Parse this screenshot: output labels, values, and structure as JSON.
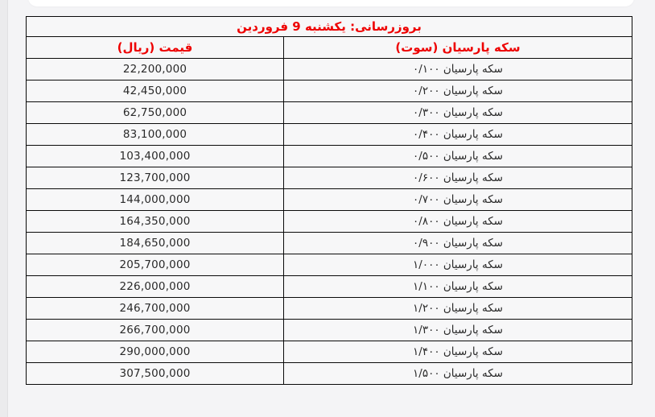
{
  "colors": {
    "accent_red": "#ee0000"
  },
  "table": {
    "title": "بروزرسانی: یکشنبه 9 فروردین",
    "columns": {
      "coin": "سکه پارسیان (سوت)",
      "price": "قیمت (ریال)"
    },
    "rows": [
      {
        "price": "22,200,000",
        "coin": "سکه پارسیان ۰/۱۰۰"
      },
      {
        "price": "42,450,000",
        "coin": "سکه پارسیان ۰/۲۰۰"
      },
      {
        "price": "62,750,000",
        "coin": "سکه پارسیان ۰/۳۰۰"
      },
      {
        "price": "83,100,000",
        "coin": "سکه پارسیان ۰/۴۰۰"
      },
      {
        "price": "103,400,000",
        "coin": "سکه پارسیان ۰/۵۰۰"
      },
      {
        "price": "123,700,000",
        "coin": "سکه پارسیان ۰/۶۰۰"
      },
      {
        "price": "144,000,000",
        "coin": "سکه پارسیان ۰/۷۰۰"
      },
      {
        "price": "164,350,000",
        "coin": "سکه پارسیان ۰/۸۰۰"
      },
      {
        "price": "184,650,000",
        "coin": "سکه پارسیان ۰/۹۰۰"
      },
      {
        "price": "205,700,000",
        "coin": "سکه پارسیان ۱/۰۰۰"
      },
      {
        "price": "226,000,000",
        "coin": "سکه پارسیان ۱/۱۰۰"
      },
      {
        "price": "246,700,000",
        "coin": "سکه پارسیان ۱/۲۰۰"
      },
      {
        "price": "266,700,000",
        "coin": "سکه پارسیان ۱/۳۰۰"
      },
      {
        "price": "290,000,000",
        "coin": "سکه پارسیان ۱/۴۰۰"
      },
      {
        "price": "307,500,000",
        "coin": "سکه پارسیان ۱/۵۰۰"
      }
    ]
  }
}
